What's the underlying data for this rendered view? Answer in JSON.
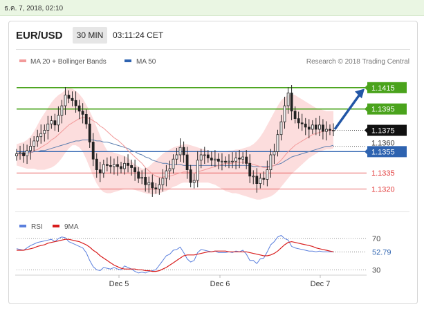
{
  "timestamp": "ธ.ค. 7, 2018, 02:10",
  "header": {
    "pair": "EUR/USD",
    "timeframe": "30 MIN",
    "time": "03:11:24 CET"
  },
  "legend": {
    "bb": "MA 20 + Bollinger Bands",
    "ma50": "MA 50",
    "rsi": "RSI",
    "ma9": "9MA",
    "credit": "Research © 2018 Trading Central"
  },
  "colors": {
    "green": "#4aa31c",
    "blue": "#2e63b0",
    "red": "#e23c3c",
    "band": "#fbd5d5",
    "ma20": "#f29a9a",
    "ma50": "#5d7fb0",
    "rsi": "#5a7fdd",
    "rsi_ma": "#d81c1c",
    "arrow": "#2256a6"
  },
  "chart_data": [
    {
      "type": "candlestick",
      "x_ticks": [
        "Dec 5",
        "Dec 6",
        "Dec 7"
      ],
      "ylim": [
        1.1304,
        1.1435
      ],
      "current_price": "1.1375",
      "levels": [
        {
          "value": 1.1415,
          "label": "1.1415",
          "kind": "resistance"
        },
        {
          "value": 1.1395,
          "label": "1.1395",
          "kind": "resistance"
        },
        {
          "value": 1.1375,
          "label": "1.1375",
          "kind": "current"
        },
        {
          "value": 1.136,
          "label": "1.1360",
          "kind": "ma50"
        },
        {
          "value": 1.1355,
          "label": "1.1355",
          "kind": "pivot"
        },
        {
          "value": 1.1335,
          "label": "1.1335",
          "kind": "support"
        },
        {
          "value": 1.132,
          "label": "1.1320",
          "kind": "support"
        }
      ],
      "close": [
        1.1353,
        1.1354,
        1.1351,
        1.1356,
        1.136,
        1.1365,
        1.1369,
        1.1372,
        1.1375,
        1.1381,
        1.1384,
        1.138,
        1.1389,
        1.1398,
        1.1408,
        1.1405,
        1.1403,
        1.1398,
        1.1393,
        1.139,
        1.1381,
        1.1364,
        1.1348,
        1.1338,
        1.1335,
        1.1343,
        1.1342,
        1.1341,
        1.1343,
        1.1341,
        1.1339,
        1.1344,
        1.1342,
        1.134,
        1.1336,
        1.133,
        1.1331,
        1.1324,
        1.1326,
        1.1321,
        1.132,
        1.1324,
        1.133,
        1.1337,
        1.1339,
        1.1348,
        1.1352,
        1.1359,
        1.1352,
        1.1338,
        1.1326,
        1.1328,
        1.1347,
        1.1352,
        1.1352,
        1.1349,
        1.1347,
        1.1348,
        1.1346,
        1.1346,
        1.1345,
        1.1346,
        1.1346,
        1.1349,
        1.1348,
        1.135,
        1.1344,
        1.1332,
        1.1332,
        1.1325,
        1.133,
        1.1329,
        1.1338,
        1.1352,
        1.1355,
        1.1371,
        1.1383,
        1.1398,
        1.141,
        1.1393,
        1.1386,
        1.1382,
        1.1381,
        1.1378,
        1.1376,
        1.138,
        1.1376,
        1.138,
        1.1374,
        1.1376,
        1.1375,
        1.1375
      ],
      "series": [
        {
          "name": "MA 20",
          "values": [
            1.1352,
            1.1352,
            1.1352,
            1.1353,
            1.1354,
            1.1356,
            1.1357,
            1.1359,
            1.1361,
            1.1363,
            1.1366,
            1.1368,
            1.1371,
            1.1374,
            1.1377,
            1.138,
            1.1382,
            1.1384,
            1.1386,
            1.1387,
            1.1387,
            1.1386,
            1.1384,
            1.1382,
            1.1379,
            1.1377,
            1.1374,
            1.1371,
            1.1368,
            1.1366,
            1.1363,
            1.136,
            1.1356,
            1.1353,
            1.135,
            1.1347,
            1.1344,
            1.134,
            1.1337,
            1.1334,
            1.1332,
            1.1331,
            1.1331,
            1.1332,
            1.1332,
            1.1333,
            1.1334,
            1.1335,
            1.1336,
            1.1336,
            1.1335,
            1.1335,
            1.1336,
            1.1337,
            1.1338,
            1.1339,
            1.134,
            1.1341,
            1.1342,
            1.1343,
            1.1344,
            1.1344,
            1.1344,
            1.1345,
            1.1345,
            1.1345,
            1.1345,
            1.1344,
            1.1343,
            1.1342,
            1.1341,
            1.134,
            1.134,
            1.1341,
            1.1342,
            1.1344,
            1.1347,
            1.1351,
            1.1355,
            1.1358,
            1.1361,
            1.1363,
            1.1365,
            1.1367,
            1.1369,
            1.1371,
            1.1372,
            1.1373,
            1.1374,
            1.1375,
            1.1375,
            1.1375
          ]
        },
        {
          "name": "MA 50",
          "values": [
            1.1353,
            1.1353,
            1.1353,
            1.1354,
            1.1354,
            1.1355,
            1.1355,
            1.1356,
            1.1356,
            1.1357,
            1.1358,
            1.1359,
            1.136,
            1.1361,
            1.1362,
            1.1363,
            1.1364,
            1.1365,
            1.1365,
            1.1366,
            1.1366,
            1.1366,
            1.1366,
            1.1365,
            1.1365,
            1.1364,
            1.1364,
            1.1363,
            1.1362,
            1.1361,
            1.136,
            1.1359,
            1.1358,
            1.1356,
            1.1355,
            1.1353,
            1.1352,
            1.135,
            1.1349,
            1.1347,
            1.1346,
            1.1345,
            1.1344,
            1.1344,
            1.1343,
            1.1343,
            1.1343,
            1.1343,
            1.1342,
            1.1342,
            1.1342,
            1.1342,
            1.1342,
            1.1342,
            1.1342,
            1.1342,
            1.1342,
            1.1342,
            1.1342,
            1.1342,
            1.1342,
            1.1342,
            1.1342,
            1.1342,
            1.1342,
            1.1342,
            1.1342,
            1.1342,
            1.1341,
            1.1341,
            1.1341,
            1.1341,
            1.1341,
            1.1341,
            1.1342,
            1.1343,
            1.1344,
            1.1346,
            1.1348,
            1.135,
            1.1351,
            1.1352,
            1.1353,
            1.1354,
            1.1355,
            1.1356,
            1.1357,
            1.1358,
            1.1359,
            1.136,
            1.136,
            1.1361
          ]
        },
        {
          "name": "BB upper",
          "values": [
            1.1362,
            1.1363,
            1.1364,
            1.1366,
            1.1369,
            1.1374,
            1.138,
            1.1386,
            1.1391,
            1.1396,
            1.1401,
            1.1405,
            1.1408,
            1.141,
            1.1413,
            1.1415,
            1.1414,
            1.1412,
            1.1409,
            1.1405,
            1.1399,
            1.1393,
            1.1386,
            1.1378,
            1.137,
            1.1362,
            1.1356,
            1.1355,
            1.1354,
            1.1353,
            1.1352,
            1.1351,
            1.1349,
            1.1346,
            1.1343,
            1.1341,
            1.1339,
            1.1339,
            1.1341,
            1.1344,
            1.1347,
            1.135,
            1.1353,
            1.1355,
            1.1357,
            1.1359,
            1.136,
            1.1361,
            1.1362,
            1.1362,
            1.1361,
            1.136,
            1.1359,
            1.1358,
            1.1357,
            1.1356,
            1.1355,
            1.1355,
            1.1355,
            1.1355,
            1.1355,
            1.1356,
            1.1356,
            1.1357,
            1.1357,
            1.1358,
            1.1359,
            1.136,
            1.1362,
            1.1365,
            1.1369,
            1.1374,
            1.138,
            1.1386,
            1.1392,
            1.1398,
            1.1403,
            1.1406,
            1.1408,
            1.1409,
            1.1408,
            1.1406,
            1.1404,
            1.1402,
            1.14,
            1.1398,
            1.1396,
            1.1395,
            1.1394,
            1.1393,
            1.1393,
            1.1393
          ]
        },
        {
          "name": "BB lower",
          "values": [
            1.1342,
            1.1341,
            1.134,
            1.1339,
            1.1339,
            1.1339,
            1.1338,
            1.1338,
            1.1338,
            1.1339,
            1.134,
            1.1342,
            1.1345,
            1.1349,
            1.1354,
            1.1358,
            1.1361,
            1.1361,
            1.1359,
            1.1355,
            1.1348,
            1.134,
            1.1332,
            1.1325,
            1.132,
            1.1317,
            1.1316,
            1.1316,
            1.1317,
            1.1318,
            1.1319,
            1.132,
            1.132,
            1.132,
            1.1319,
            1.1318,
            1.1317,
            1.1316,
            1.1315,
            1.1315,
            1.1315,
            1.1316,
            1.1317,
            1.1318,
            1.132,
            1.1322,
            1.1323,
            1.1325,
            1.1326,
            1.1326,
            1.1326,
            1.1326,
            1.1326,
            1.1326,
            1.1326,
            1.1326,
            1.1325,
            1.1324,
            1.1322,
            1.132,
            1.1318,
            1.1317,
            1.1316,
            1.1316,
            1.1315,
            1.1314,
            1.1313,
            1.1312,
            1.1311,
            1.131,
            1.131,
            1.1311,
            1.1312,
            1.1313,
            1.1315,
            1.1318,
            1.1322,
            1.1326,
            1.133,
            1.1334,
            1.1337,
            1.134,
            1.1343,
            1.1346,
            1.1349,
            1.1351,
            1.1353,
            1.1355,
            1.1356,
            1.1357,
            1.1357,
            1.1358
          ]
        }
      ]
    },
    {
      "type": "line",
      "title": "RSI",
      "ylim": [
        25,
        78
      ],
      "levels": [
        70,
        30
      ],
      "current_value": "52.79",
      "series": [
        {
          "name": "RSI",
          "values": [
            57,
            56,
            55,
            58,
            61,
            63,
            65,
            66,
            67,
            68,
            69,
            66,
            70,
            72,
            71,
            66,
            64,
            62,
            60,
            58,
            52,
            42,
            34,
            30,
            29,
            33,
            32,
            31,
            33,
            31,
            30,
            35,
            33,
            31,
            28,
            26,
            27,
            26,
            28,
            29,
            30,
            36,
            42,
            48,
            50,
            55,
            56,
            59,
            52,
            44,
            40,
            42,
            52,
            56,
            55,
            54,
            53,
            54,
            52,
            52,
            52,
            53,
            52,
            54,
            53,
            55,
            50,
            42,
            42,
            38,
            44,
            45,
            53,
            62,
            66,
            72,
            74,
            70,
            68,
            60,
            58,
            57,
            56,
            55,
            54,
            54,
            53,
            54,
            53,
            53,
            53,
            53
          ]
        },
        {
          "name": "9MA",
          "values": [
            55,
            55,
            55,
            56,
            57,
            58,
            60,
            61,
            62,
            64,
            65,
            66,
            67,
            68,
            69,
            69,
            68,
            67,
            66,
            64,
            62,
            59,
            55,
            52,
            48,
            45,
            42,
            39,
            36,
            34,
            32,
            31,
            31,
            31,
            31,
            30,
            30,
            29,
            29,
            28,
            28,
            29,
            31,
            33,
            36,
            39,
            42,
            45,
            48,
            49,
            49,
            49,
            50,
            51,
            52,
            53,
            53,
            54,
            54,
            54,
            54,
            53,
            53,
            53,
            53,
            53,
            53,
            52,
            51,
            50,
            49,
            48,
            48,
            49,
            51,
            54,
            58,
            62,
            65,
            66,
            65,
            64,
            63,
            62,
            61,
            60,
            58,
            57,
            56,
            55,
            54,
            53
          ]
        }
      ]
    }
  ]
}
